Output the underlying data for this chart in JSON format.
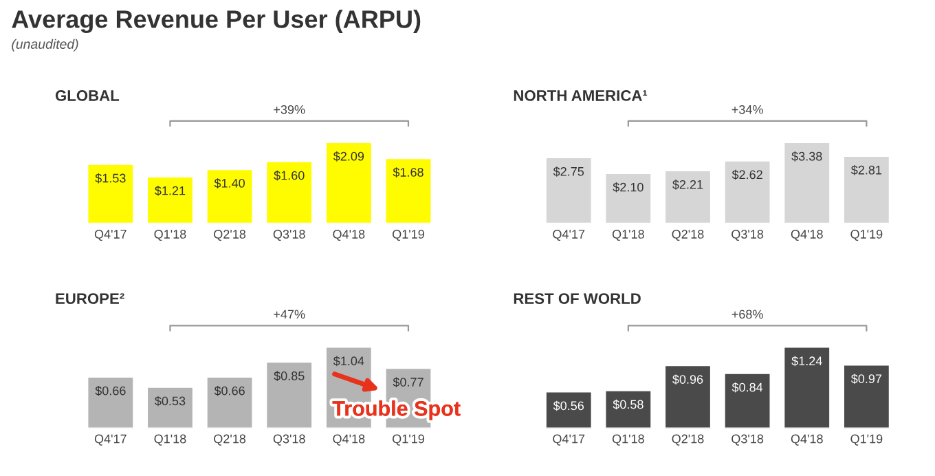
{
  "chart_data": [
    {
      "type": "other",
      "title": "Average Revenue Per User (ARPU)",
      "subtitle": "(unaudited)"
    },
    {
      "type": "bar",
      "title": "GLOBAL",
      "categories": [
        "Q4'17",
        "Q1'18",
        "Q2'18",
        "Q3'18",
        "Q4'18",
        "Q1'19"
      ],
      "values": [
        1.53,
        1.21,
        1.4,
        1.6,
        2.09,
        1.68
      ],
      "value_labels": [
        "$1.53",
        "$1.21",
        "$1.40",
        "$1.60",
        "$2.09",
        "$1.68"
      ],
      "color": "#fffc00",
      "annotations": [
        "+39%"
      ]
    },
    {
      "type": "bar",
      "title": "NORTH AMERICA¹",
      "categories": [
        "Q4'17",
        "Q1'18",
        "Q2'18",
        "Q3'18",
        "Q4'18",
        "Q1'19"
      ],
      "values": [
        2.75,
        2.1,
        2.21,
        2.62,
        3.38,
        2.81
      ],
      "value_labels": [
        "$2.75",
        "$2.10",
        "$2.21",
        "$2.62",
        "$3.38",
        "$2.81"
      ],
      "color": "#d6d6d6",
      "annotations": [
        "+34%"
      ]
    },
    {
      "type": "bar",
      "title": "EUROPE²",
      "categories": [
        "Q4'17",
        "Q1'18",
        "Q2'18",
        "Q3'18",
        "Q4'18",
        "Q1'19"
      ],
      "values": [
        0.66,
        0.53,
        0.66,
        0.85,
        1.04,
        0.77
      ],
      "value_labels": [
        "$0.66",
        "$0.53",
        "$0.66",
        "$0.85",
        "$1.04",
        "$0.77"
      ],
      "color": "#b4b4b4",
      "annotations": [
        "+47%",
        {
          "text": "Trouble Spot",
          "x": "Q1'19",
          "y": 0.77
        }
      ]
    },
    {
      "type": "bar",
      "title": "REST OF WORLD",
      "categories": [
        "Q4'17",
        "Q1'18",
        "Q2'18",
        "Q3'18",
        "Q4'18",
        "Q1'19"
      ],
      "values": [
        0.56,
        0.58,
        0.96,
        0.84,
        1.24,
        0.97
      ],
      "value_labels": [
        "$0.56",
        "$0.58",
        "$0.96",
        "$0.84",
        "$1.24",
        "$0.97"
      ],
      "color": "#4a4a4a",
      "annotations": [
        "+68%"
      ]
    }
  ]
}
